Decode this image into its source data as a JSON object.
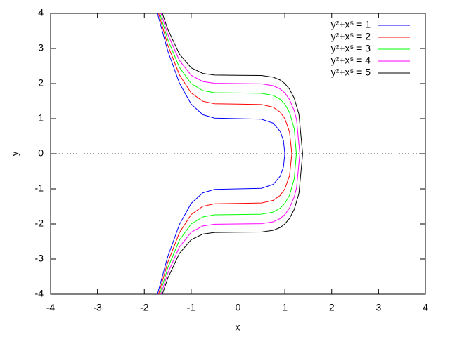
{
  "chart_data": {
    "type": "line",
    "xlabel": "x",
    "ylabel": "y",
    "xlim": [
      -4,
      4
    ],
    "ylim": [
      -4,
      4
    ],
    "xticks": [
      -4,
      -3,
      -2,
      -1,
      0,
      1,
      2,
      3,
      4
    ],
    "yticks": [
      -4,
      -3,
      -2,
      -1,
      0,
      1,
      2,
      3,
      4
    ],
    "zeroaxis": true,
    "legend": "top-right",
    "series": [
      {
        "name": "y²+x⁵ = 1",
        "color": "#0000ff",
        "x": [
          -1.719,
          -1.5,
          -1.25,
          -1,
          -0.75,
          -0.5,
          0,
          0.5,
          0.75,
          0.9,
          0.97,
          1,
          0.97,
          0.9,
          0.75,
          0.5,
          0,
          -0.5,
          -0.75,
          -1,
          -1.25,
          -1.5,
          -1.719
        ],
        "y": [
          4,
          2.932,
          2.013,
          1.414,
          1.112,
          1.016,
          1,
          0.984,
          0.873,
          0.64,
          0.376,
          0,
          -0.376,
          -0.64,
          -0.873,
          -0.984,
          -1,
          -1.016,
          -1.112,
          -1.414,
          -2.013,
          -2.932,
          -4
        ]
      },
      {
        "name": "y²+x⁵ = 2",
        "color": "#ff0000",
        "x": [
          -1.695,
          -1.5,
          -1.25,
          -1,
          -0.75,
          -0.5,
          0,
          0.5,
          0.75,
          0.9,
          1,
          1.1,
          1.149,
          1.1,
          1,
          0.9,
          0.75,
          0.5,
          0,
          -0.5,
          -0.75,
          -1,
          -1.25,
          -1.5,
          -1.695
        ],
        "y": [
          4,
          3.097,
          2.248,
          1.732,
          1.496,
          1.425,
          1.414,
          1.403,
          1.328,
          1.187,
          1,
          0.624,
          0,
          -0.624,
          -1,
          -1.187,
          -1.328,
          -1.403,
          -1.414,
          -1.425,
          -1.496,
          -1.732,
          -2.248,
          -3.097,
          -4
        ]
      },
      {
        "name": "y²+x⁵ = 3",
        "color": "#00ff00",
        "x": [
          -1.67,
          -1.5,
          -1.25,
          -1,
          -0.75,
          -0.5,
          0,
          0.5,
          0.75,
          0.9,
          1,
          1.1,
          1.2,
          1.246,
          1.2,
          1.1,
          1,
          0.9,
          0.75,
          0.5,
          0,
          -0.5,
          -0.75,
          -1,
          -1.25,
          -1.5,
          -1.67
        ],
        "y": [
          4,
          3.255,
          2.46,
          2,
          1.799,
          1.741,
          1.732,
          1.723,
          1.662,
          1.552,
          1.414,
          1.179,
          0.716,
          0,
          -0.716,
          -1.179,
          -1.414,
          -1.552,
          -1.662,
          -1.723,
          -1.732,
          -1.741,
          -1.799,
          -2,
          -2.46,
          -3.255,
          -4
        ]
      },
      {
        "name": "y²+x⁵ = 4",
        "color": "#ff00ff",
        "x": [
          -1.644,
          -1.5,
          -1.25,
          -1,
          -0.75,
          -0.5,
          0,
          0.5,
          0.75,
          0.9,
          1,
          1.1,
          1.2,
          1.25,
          1.32,
          1.25,
          1.2,
          1.1,
          1,
          0.9,
          0.75,
          0.5,
          0,
          -0.5,
          -0.75,
          -1,
          -1.25,
          -1.5,
          -1.644
        ],
        "y": [
          4,
          3.405,
          2.656,
          2.236,
          2.058,
          2.008,
          2,
          1.992,
          1.94,
          1.846,
          1.732,
          1.546,
          1.23,
          0.974,
          0,
          -0.974,
          -1.23,
          -1.546,
          -1.732,
          -1.846,
          -1.94,
          -1.992,
          -2,
          -2.008,
          -2.058,
          -2.236,
          -2.656,
          -3.405,
          -4
        ]
      },
      {
        "name": "y²+x⁵ = 5",
        "color": "#000000",
        "x": [
          -1.615,
          -1.5,
          -1.25,
          -1,
          -0.75,
          -0.5,
          0,
          0.5,
          0.75,
          0.9,
          1,
          1.1,
          1.2,
          1.3,
          1.38,
          1.3,
          1.2,
          1.1,
          1,
          0.9,
          0.75,
          0.5,
          0,
          -0.5,
          -0.75,
          -1,
          -1.25,
          -1.5,
          -1.615
        ],
        "y": [
          4,
          3.549,
          2.838,
          2.449,
          2.288,
          2.243,
          2.236,
          2.229,
          2.182,
          2.1,
          2,
          1.841,
          1.585,
          1.134,
          0,
          -1.134,
          -1.585,
          -1.841,
          -2,
          -2.1,
          -2.182,
          -2.229,
          -2.236,
          -2.243,
          -2.288,
          -2.449,
          -2.838,
          -3.549,
          -4
        ]
      }
    ]
  }
}
